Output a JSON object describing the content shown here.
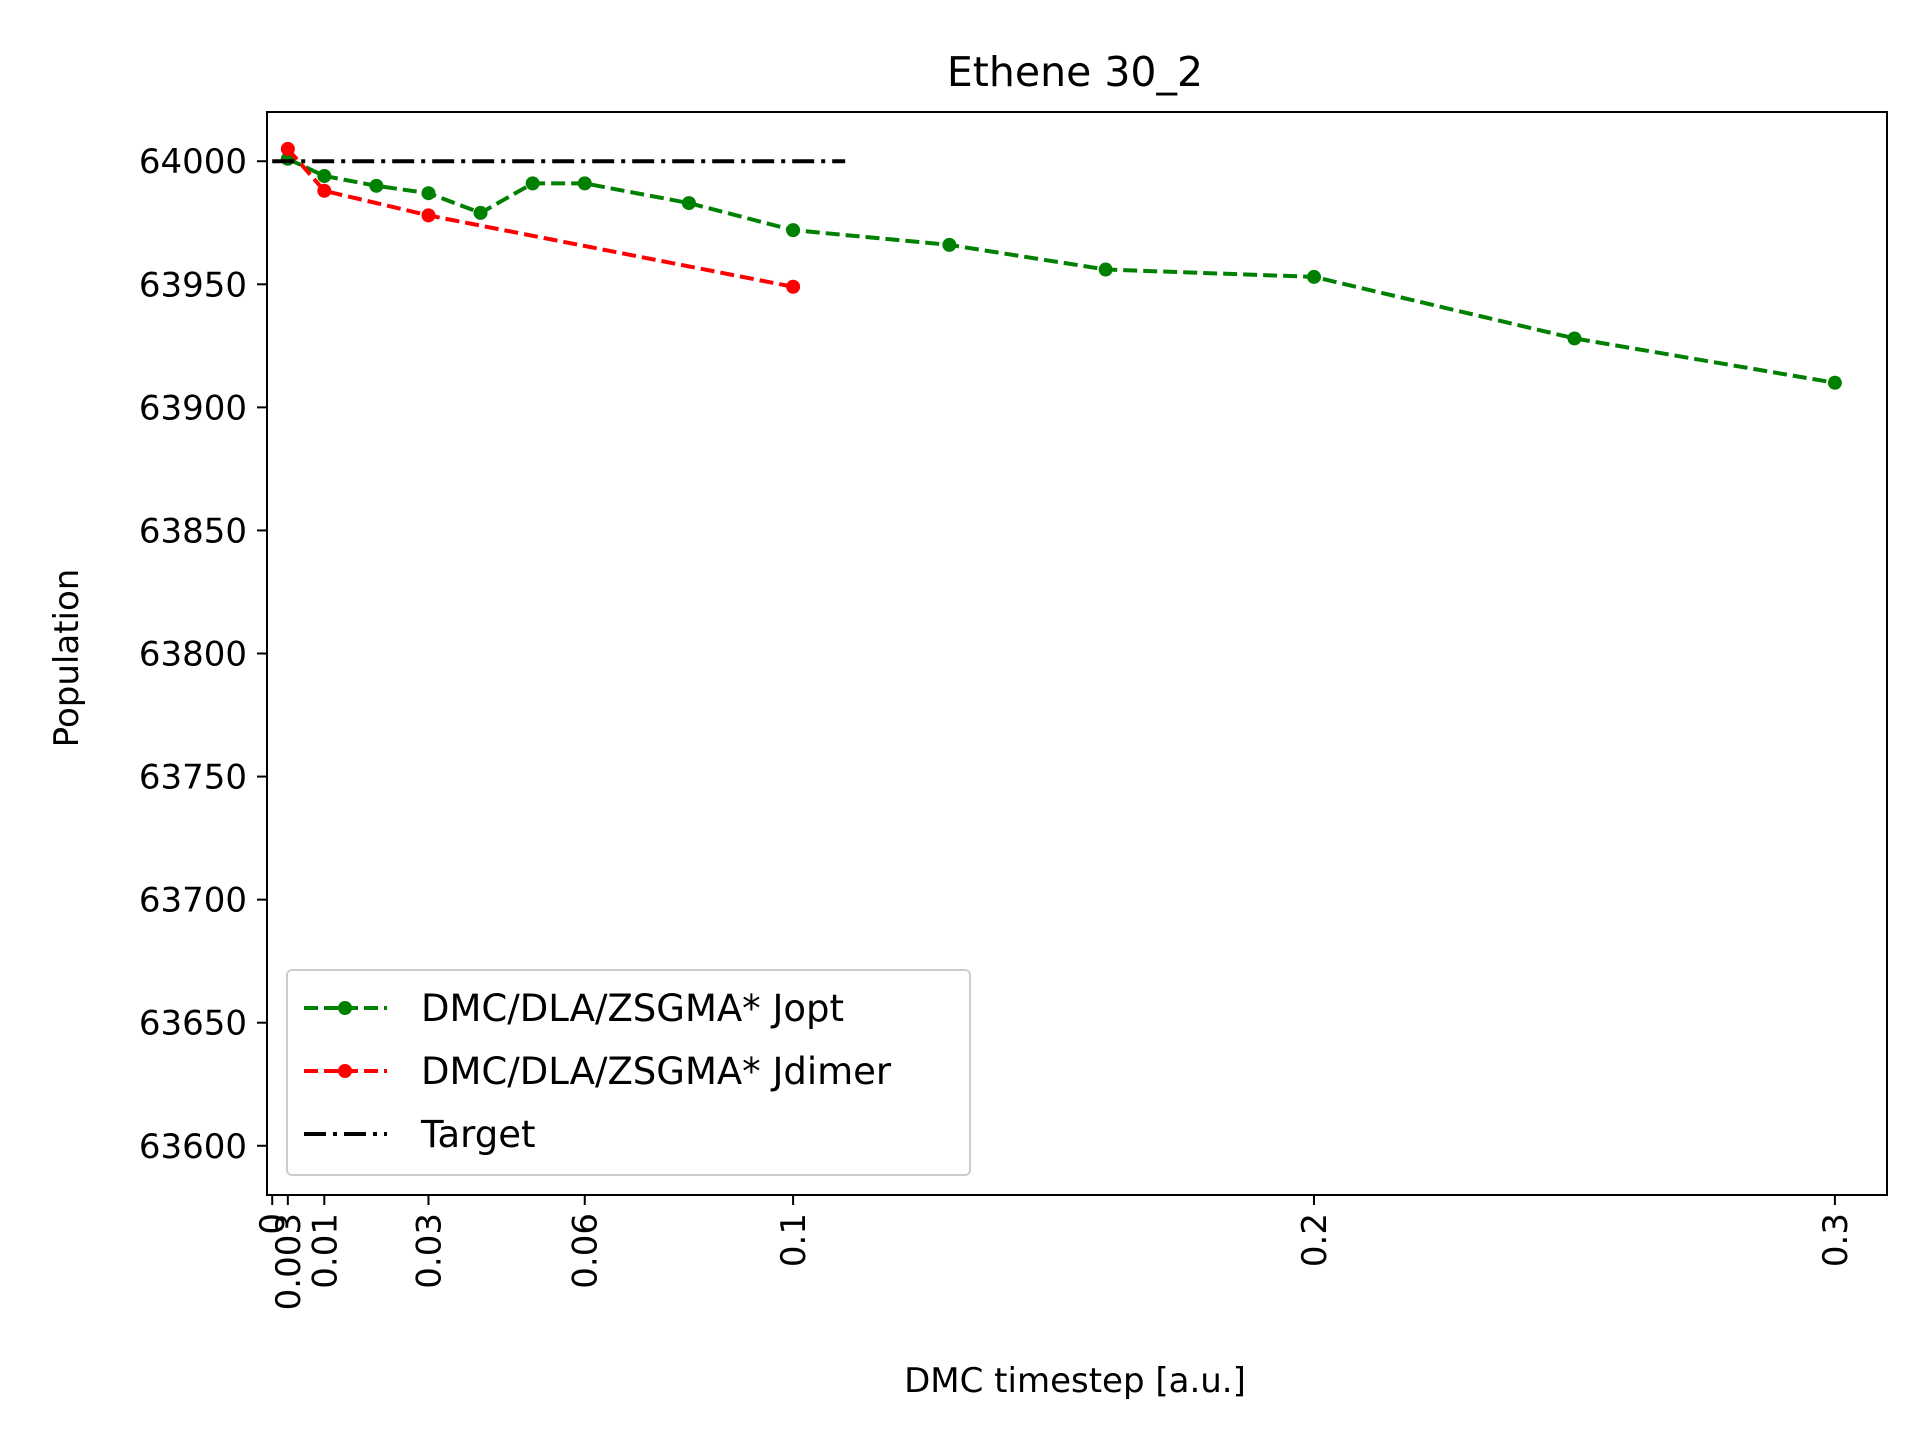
{
  "chart_data": {
    "type": "line",
    "title": "Ethene 30_2",
    "xlabel": "DMC timestep [a.u.]",
    "ylabel": "Population",
    "xlim": [
      -0.001,
      0.31
    ],
    "ylim": [
      63580,
      64020
    ],
    "x_ticks": [
      0,
      0.003,
      0.01,
      0.03,
      0.06,
      0.1,
      0.2,
      0.3
    ],
    "x_tick_labels": [
      "0",
      "0.003",
      "0.01",
      "0.03",
      "0.06",
      "0.1",
      "0.2",
      "0.3"
    ],
    "y_ticks": [
      63600,
      63650,
      63700,
      63750,
      63800,
      63850,
      63900,
      63950,
      64000
    ],
    "y_tick_labels": [
      "63600",
      "63650",
      "63700",
      "63750",
      "63800",
      "63850",
      "63900",
      "63950",
      "64000"
    ],
    "grid": false,
    "legend_position": "lower-left",
    "series": [
      {
        "name": "DMC/DLA/ZSGMA* Jopt",
        "color": "#008000",
        "linestyle": "dashed",
        "marker": "dot",
        "x": [
          0.003,
          0.01,
          0.02,
          0.03,
          0.04,
          0.05,
          0.06,
          0.08,
          0.1,
          0.13,
          0.16,
          0.2,
          0.25,
          0.3
        ],
        "y": [
          64001,
          63994,
          63990,
          63987,
          63979,
          63991,
          63991,
          63983,
          63972,
          63966,
          63956,
          63953,
          63928,
          63910
        ]
      },
      {
        "name": "DMC/DLA/ZSGMA* Jdimer",
        "color": "#ff0000",
        "linestyle": "dashed",
        "marker": "dot",
        "x": [
          0.003,
          0.01,
          0.03,
          0.1
        ],
        "y": [
          64005,
          63988,
          63978,
          63949
        ]
      },
      {
        "name": "Target",
        "color": "#000000",
        "linestyle": "dashdot",
        "marker": "none",
        "x": [
          0,
          0.11
        ],
        "y": [
          64000,
          64000
        ]
      }
    ]
  }
}
